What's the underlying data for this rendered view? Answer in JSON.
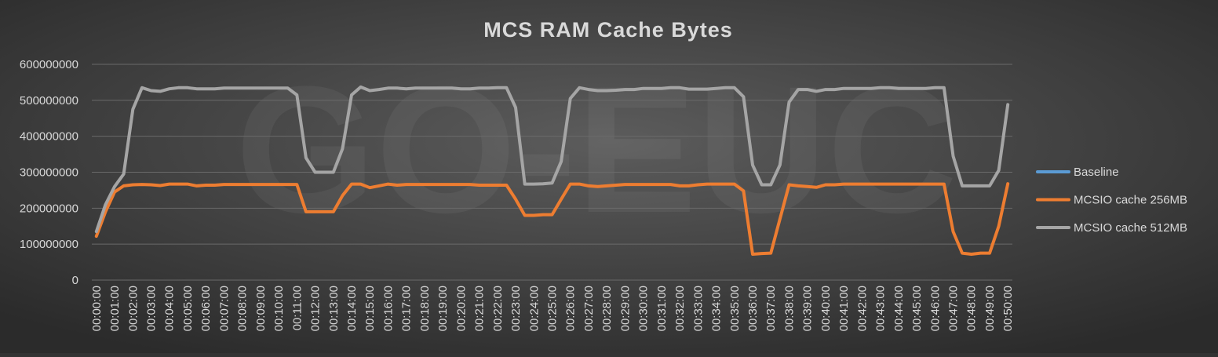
{
  "chart_data": {
    "type": "line",
    "title": "MCS RAM Cache Bytes",
    "watermark": "GO-EUC",
    "categories": [
      "00:00:00",
      null,
      "00:01:00",
      null,
      "00:02:00",
      null,
      "00:03:00",
      null,
      "00:04:00",
      null,
      "00:05:00",
      null,
      "00:06:00",
      null,
      "00:07:00",
      null,
      "00:08:00",
      null,
      "00:09:00",
      null,
      "00:10:00",
      null,
      "00:11:00",
      null,
      "00:12:00",
      null,
      "00:13:00",
      null,
      "00:14:00",
      null,
      "00:15:00",
      null,
      "00:16:00",
      null,
      "00:17:00",
      null,
      "00:18:00",
      null,
      "00:19:00",
      null,
      "00:20:00",
      null,
      "00:21:00",
      null,
      "00:22:00",
      null,
      "00:23:00",
      null,
      "00:24:00",
      null,
      "00:25:00",
      null,
      "00:26:00",
      null,
      "00:27:00",
      null,
      "00:28:00",
      null,
      "00:29:00",
      null,
      "00:30:00",
      null,
      "00:31:00",
      null,
      "00:32:00",
      null,
      "00:33:00",
      null,
      "00:34:00",
      null,
      "00:35:00",
      null,
      "00:36:00",
      null,
      "00:37:00",
      null,
      "00:38:00",
      null,
      "00:39:00",
      null,
      "00:40:00",
      null,
      "00:41:00",
      null,
      "00:42:00",
      null,
      "00:43:00",
      null,
      "00:44:00",
      null,
      "00:45:00",
      null,
      "00:46:00",
      null,
      "00:47:00",
      null,
      "00:48:00",
      null,
      "00:49:00",
      null,
      "00:50:00"
    ],
    "series": [
      {
        "name": "Baseline",
        "color": "#5b9bd5",
        "values": [
          null,
          null,
          null,
          null,
          null,
          null,
          null,
          null,
          null,
          null,
          null,
          null,
          null,
          null,
          null,
          null,
          null,
          null,
          null,
          null,
          null,
          null,
          null,
          null,
          null,
          null,
          null,
          null,
          null,
          null,
          null,
          null,
          null,
          null,
          null,
          null,
          null,
          null,
          null,
          null,
          null,
          null,
          null,
          null,
          null,
          null,
          null,
          null,
          null,
          null,
          null,
          null,
          null,
          null,
          null,
          null,
          null,
          null,
          null,
          null,
          null,
          null,
          null,
          null,
          null,
          null,
          null,
          null,
          null,
          null,
          null,
          null,
          null,
          null,
          null,
          null,
          null,
          null,
          null,
          null,
          null,
          null,
          null,
          null,
          null,
          null,
          null,
          null,
          null,
          null,
          null,
          null,
          null,
          null,
          null,
          null,
          null,
          null,
          null,
          null,
          null
        ]
      },
      {
        "name": "MCSIO cache 256MB",
        "color": "#ed7d31",
        "values": [
          122000000,
          190000000,
          245000000,
          262000000,
          265000000,
          266000000,
          265000000,
          263000000,
          267000000,
          267000000,
          267000000,
          262000000,
          264000000,
          264000000,
          266000000,
          266000000,
          266000000,
          266000000,
          266000000,
          266000000,
          266000000,
          266000000,
          266000000,
          190000000,
          190000000,
          190000000,
          190000000,
          235000000,
          267000000,
          267000000,
          257000000,
          262000000,
          267000000,
          264000000,
          266000000,
          266000000,
          266000000,
          266000000,
          266000000,
          266000000,
          266000000,
          266000000,
          264000000,
          264000000,
          264000000,
          264000000,
          225000000,
          180000000,
          180000000,
          182000000,
          182000000,
          225000000,
          267000000,
          267000000,
          262000000,
          260000000,
          262000000,
          264000000,
          266000000,
          266000000,
          266000000,
          266000000,
          266000000,
          266000000,
          262000000,
          262000000,
          265000000,
          267000000,
          267000000,
          267000000,
          267000000,
          248000000,
          72000000,
          74000000,
          75000000,
          170000000,
          265000000,
          262000000,
          260000000,
          258000000,
          265000000,
          265000000,
          267000000,
          267000000,
          267000000,
          267000000,
          267000000,
          267000000,
          267000000,
          267000000,
          267000000,
          267000000,
          267000000,
          267000000,
          135000000,
          75000000,
          72000000,
          75000000,
          75000000,
          150000000,
          268000000
        ]
      },
      {
        "name": "MCSIO cache 512MB",
        "color": "#a5a5a5",
        "values": [
          135000000,
          210000000,
          260000000,
          295000000,
          475000000,
          535000000,
          527000000,
          525000000,
          532000000,
          535000000,
          535000000,
          532000000,
          532000000,
          532000000,
          534000000,
          534000000,
          534000000,
          534000000,
          534000000,
          534000000,
          534000000,
          534000000,
          515000000,
          340000000,
          300000000,
          300000000,
          300000000,
          365000000,
          515000000,
          537000000,
          527000000,
          530000000,
          534000000,
          534000000,
          532000000,
          534000000,
          534000000,
          534000000,
          534000000,
          534000000,
          532000000,
          532000000,
          534000000,
          534000000,
          535000000,
          535000000,
          480000000,
          267000000,
          267000000,
          268000000,
          270000000,
          330000000,
          505000000,
          535000000,
          530000000,
          527000000,
          527000000,
          528000000,
          530000000,
          530000000,
          533000000,
          533000000,
          533000000,
          535000000,
          535000000,
          531000000,
          531000000,
          531000000,
          533000000,
          535000000,
          535000000,
          510000000,
          320000000,
          265000000,
          265000000,
          320000000,
          495000000,
          530000000,
          530000000,
          525000000,
          530000000,
          530000000,
          533000000,
          533000000,
          533000000,
          533000000,
          535000000,
          535000000,
          533000000,
          533000000,
          533000000,
          533000000,
          535000000,
          535000000,
          345000000,
          262000000,
          262000000,
          262000000,
          262000000,
          305000000,
          488000000
        ]
      }
    ],
    "ylim": [
      0,
      600000000
    ],
    "yticks": [
      0,
      100000000,
      200000000,
      300000000,
      400000000,
      500000000,
      600000000
    ],
    "grid": true,
    "legend": "right"
  }
}
